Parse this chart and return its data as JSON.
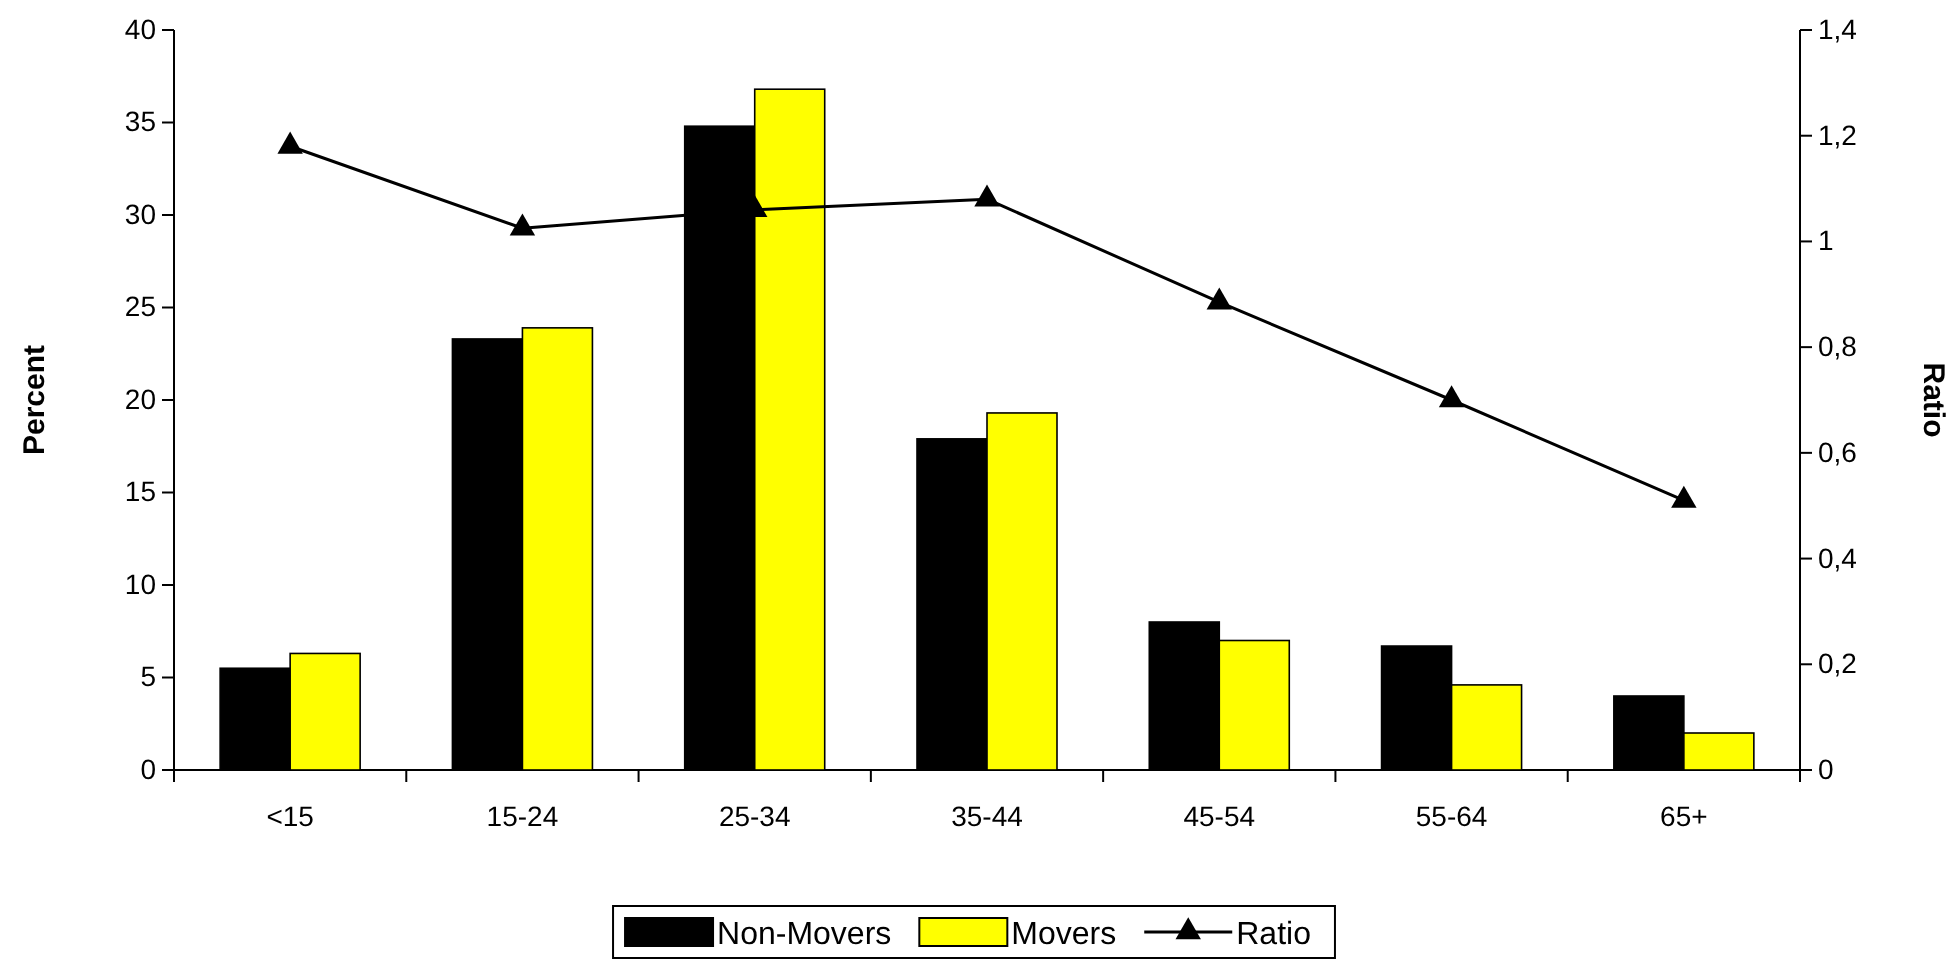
{
  "chart_data": {
    "type": "bar",
    "ylabel": "Percent",
    "y2label": "Ratio",
    "categories": [
      "<15",
      "15-24",
      "25-34",
      "35-44",
      "45-54",
      "55-64",
      "65+"
    ],
    "series": [
      {
        "name": "Non-Movers",
        "color": "#000000",
        "values": [
          5.5,
          23.3,
          34.8,
          17.9,
          8.0,
          6.7,
          4.0
        ]
      },
      {
        "name": "Movers",
        "color": "#ffff00",
        "values": [
          6.3,
          23.9,
          36.8,
          19.3,
          7.0,
          4.6,
          2.0
        ]
      },
      {
        "name": "Ratio",
        "type": "line",
        "axis": "y2",
        "color": "#000000",
        "marker": "triangle",
        "values": [
          1.18,
          1.025,
          1.06,
          1.08,
          0.885,
          0.7,
          0.51
        ]
      }
    ],
    "ylim": [
      0,
      40
    ],
    "yticks": [
      0,
      5,
      10,
      15,
      20,
      25,
      30,
      35,
      40
    ],
    "y2lim": [
      0,
      1.4
    ],
    "y2ticks": [
      0,
      {
        "value": 0.2,
        "label": "0,2"
      },
      {
        "value": 0.4,
        "label": "0,4"
      },
      {
        "value": 0.6,
        "label": "0,6"
      },
      {
        "value": 0.8,
        "label": "0,8"
      },
      1,
      {
        "value": 1.2,
        "label": "1,2"
      },
      {
        "value": 1.4,
        "label": "1,4"
      }
    ],
    "grid": false,
    "legend": "bottom"
  }
}
